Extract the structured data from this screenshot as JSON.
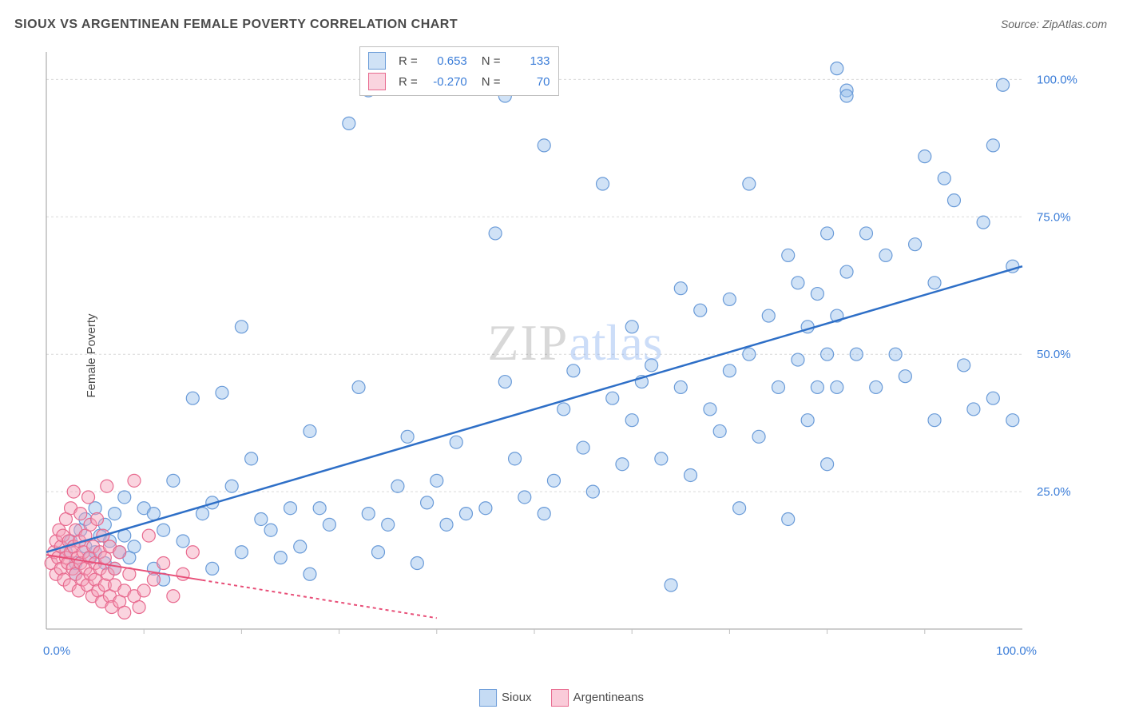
{
  "title": "SIOUX VS ARGENTINEAN FEMALE POVERTY CORRELATION CHART",
  "source": "Source: ZipAtlas.com",
  "ylabel": "Female Poverty",
  "watermark": {
    "zip": "ZIP",
    "atlas": "atlas"
  },
  "chart": {
    "type": "scatter",
    "background_color": "#ffffff",
    "grid_color": "#d9d9d9",
    "axis_color": "#9e9e9e",
    "tick_color": "#bfbfbf",
    "label_color": "#3b7dd8",
    "label_fontsize": 15,
    "xlim": [
      0,
      100
    ],
    "ylim": [
      0,
      105
    ],
    "xticks": [
      0,
      100
    ],
    "xtick_labels": [
      "0.0%",
      "100.0%"
    ],
    "yticks": [
      25,
      50,
      75,
      100
    ],
    "ytick_labels": [
      "25.0%",
      "50.0%",
      "75.0%",
      "100.0%"
    ],
    "minor_xticks": [
      10,
      20,
      30,
      40,
      50,
      60,
      70,
      80,
      90
    ],
    "marker_radius": 8,
    "marker_stroke_width": 1.2,
    "series": [
      {
        "name": "Sioux",
        "fill": "rgba(150,190,235,0.45)",
        "stroke": "#6a9bd8",
        "line_color": "#2e6fc7",
        "line_width": 2.5,
        "line_dash": "none",
        "trend": {
          "x1": 0,
          "y1": 14,
          "x2": 100,
          "y2": 66
        },
        "R": "0.653",
        "N": "133",
        "points": [
          [
            2,
            14
          ],
          [
            2.5,
            16
          ],
          [
            3,
            10
          ],
          [
            3,
            12
          ],
          [
            3.5,
            18
          ],
          [
            4,
            15
          ],
          [
            4,
            20
          ],
          [
            4.5,
            13
          ],
          [
            5,
            14
          ],
          [
            5,
            22
          ],
          [
            5.5,
            17
          ],
          [
            6,
            12
          ],
          [
            6,
            19
          ],
          [
            6.5,
            16
          ],
          [
            7,
            11
          ],
          [
            7,
            21
          ],
          [
            7.5,
            14
          ],
          [
            8,
            17
          ],
          [
            8,
            24
          ],
          [
            8.5,
            13
          ],
          [
            9,
            15
          ],
          [
            10,
            22
          ],
          [
            11,
            11
          ],
          [
            11,
            21
          ],
          [
            12,
            9
          ],
          [
            12,
            18
          ],
          [
            13,
            27
          ],
          [
            14,
            16
          ],
          [
            15,
            42
          ],
          [
            16,
            21
          ],
          [
            17,
            11
          ],
          [
            17,
            23
          ],
          [
            18,
            43
          ],
          [
            19,
            26
          ],
          [
            20,
            14
          ],
          [
            20,
            55
          ],
          [
            21,
            31
          ],
          [
            22,
            20
          ],
          [
            23,
            18
          ],
          [
            24,
            13
          ],
          [
            25,
            22
          ],
          [
            26,
            15
          ],
          [
            27,
            36
          ],
          [
            27,
            10
          ],
          [
            28,
            22
          ],
          [
            29,
            19
          ],
          [
            31,
            92
          ],
          [
            32,
            44
          ],
          [
            33,
            21
          ],
          [
            33,
            98
          ],
          [
            34,
            14
          ],
          [
            35,
            19
          ],
          [
            36,
            26
          ],
          [
            37,
            35
          ],
          [
            38,
            12
          ],
          [
            39,
            23
          ],
          [
            40,
            27
          ],
          [
            41,
            19
          ],
          [
            42,
            34
          ],
          [
            43,
            21
          ],
          [
            45,
            22
          ],
          [
            46,
            72
          ],
          [
            47,
            45
          ],
          [
            47,
            97
          ],
          [
            48,
            31
          ],
          [
            49,
            24
          ],
          [
            51,
            21
          ],
          [
            51,
            88
          ],
          [
            52,
            27
          ],
          [
            53,
            40
          ],
          [
            54,
            47
          ],
          [
            55,
            33
          ],
          [
            56,
            25
          ],
          [
            57,
            81
          ],
          [
            58,
            42
          ],
          [
            59,
            30
          ],
          [
            60,
            38
          ],
          [
            60,
            55
          ],
          [
            61,
            45
          ],
          [
            62,
            48
          ],
          [
            63,
            31
          ],
          [
            64,
            8
          ],
          [
            65,
            44
          ],
          [
            65,
            62
          ],
          [
            66,
            28
          ],
          [
            67,
            58
          ],
          [
            68,
            40
          ],
          [
            69,
            36
          ],
          [
            70,
            47
          ],
          [
            70,
            60
          ],
          [
            71,
            22
          ],
          [
            72,
            50
          ],
          [
            72,
            81
          ],
          [
            73,
            35
          ],
          [
            74,
            57
          ],
          [
            75,
            44
          ],
          [
            76,
            68
          ],
          [
            76,
            20
          ],
          [
            77,
            49
          ],
          [
            77,
            63
          ],
          [
            78,
            55
          ],
          [
            78,
            38
          ],
          [
            79,
            44
          ],
          [
            79,
            61
          ],
          [
            80,
            72
          ],
          [
            80,
            30
          ],
          [
            80,
            50
          ],
          [
            81,
            57
          ],
          [
            81,
            102
          ],
          [
            81,
            44
          ],
          [
            82,
            65
          ],
          [
            82,
            98
          ],
          [
            82,
            97
          ],
          [
            83,
            50
          ],
          [
            84,
            72
          ],
          [
            85,
            44
          ],
          [
            86,
            68
          ],
          [
            87,
            50
          ],
          [
            88,
            46
          ],
          [
            89,
            70
          ],
          [
            90,
            86
          ],
          [
            91,
            63
          ],
          [
            91,
            38
          ],
          [
            92,
            82
          ],
          [
            93,
            78
          ],
          [
            94,
            48
          ],
          [
            95,
            40
          ],
          [
            96,
            74
          ],
          [
            97,
            88
          ],
          [
            97,
            42
          ],
          [
            98,
            99
          ],
          [
            99,
            66
          ],
          [
            99,
            38
          ]
        ]
      },
      {
        "name": "Argentineans",
        "fill": "rgba(245,160,185,0.45)",
        "stroke": "#e86a8f",
        "line_color": "#e84f78",
        "line_width": 2,
        "line_dash": "4 4",
        "trend_solid_until": 16,
        "trend": {
          "x1": 0,
          "y1": 13.5,
          "x2": 40,
          "y2": 2
        },
        "R": "-0.270",
        "N": "70",
        "points": [
          [
            0.5,
            12
          ],
          [
            0.8,
            14
          ],
          [
            1,
            10
          ],
          [
            1,
            16
          ],
          [
            1.2,
            13
          ],
          [
            1.3,
            18
          ],
          [
            1.5,
            11
          ],
          [
            1.5,
            15
          ],
          [
            1.7,
            17
          ],
          [
            1.8,
            9
          ],
          [
            2,
            13
          ],
          [
            2,
            20
          ],
          [
            2.2,
            12
          ],
          [
            2.3,
            16
          ],
          [
            2.4,
            8
          ],
          [
            2.5,
            14
          ],
          [
            2.5,
            22
          ],
          [
            2.7,
            11
          ],
          [
            2.8,
            15
          ],
          [
            2.8,
            25
          ],
          [
            3,
            10
          ],
          [
            3,
            18
          ],
          [
            3.2,
            13
          ],
          [
            3.3,
            7
          ],
          [
            3.4,
            16
          ],
          [
            3.5,
            12
          ],
          [
            3.5,
            21
          ],
          [
            3.7,
            9
          ],
          [
            3.8,
            14
          ],
          [
            4,
            11
          ],
          [
            4,
            17
          ],
          [
            4.2,
            8
          ],
          [
            4.3,
            24
          ],
          [
            4.4,
            13
          ],
          [
            4.5,
            10
          ],
          [
            4.5,
            19
          ],
          [
            4.7,
            6
          ],
          [
            4.8,
            15
          ],
          [
            5,
            12
          ],
          [
            5,
            9
          ],
          [
            5.2,
            20
          ],
          [
            5.3,
            7
          ],
          [
            5.5,
            14
          ],
          [
            5.5,
            11
          ],
          [
            5.7,
            5
          ],
          [
            5.8,
            17
          ],
          [
            6,
            8
          ],
          [
            6,
            13
          ],
          [
            6.2,
            26
          ],
          [
            6.3,
            10
          ],
          [
            6.5,
            6
          ],
          [
            6.5,
            15
          ],
          [
            6.7,
            4
          ],
          [
            7,
            11
          ],
          [
            7,
            8
          ],
          [
            7.5,
            5
          ],
          [
            7.5,
            14
          ],
          [
            8,
            7
          ],
          [
            8,
            3
          ],
          [
            8.5,
            10
          ],
          [
            9,
            6
          ],
          [
            9,
            27
          ],
          [
            9.5,
            4
          ],
          [
            10,
            7
          ],
          [
            10.5,
            17
          ],
          [
            11,
            9
          ],
          [
            12,
            12
          ],
          [
            13,
            6
          ],
          [
            14,
            10
          ],
          [
            15,
            14
          ]
        ]
      }
    ]
  },
  "bottom_legend": [
    {
      "label": "Sioux",
      "fill": "rgba(150,190,235,0.55)",
      "stroke": "#6a9bd8"
    },
    {
      "label": "Argentineans",
      "fill": "rgba(245,160,185,0.55)",
      "stroke": "#e86a8f"
    }
  ],
  "stats_labels": {
    "R": "R =",
    "N": "N ="
  }
}
